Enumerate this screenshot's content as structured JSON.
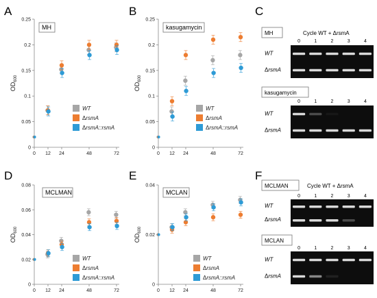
{
  "colors": {
    "wt": "#a6a6a6",
    "rsmA": "#ed7d31",
    "comp": "#2e9bd6",
    "gelBg": "#0d0d0d",
    "band": "#d9d9d9"
  },
  "panels": {
    "A": {
      "letter": "A",
      "label": "MH"
    },
    "B": {
      "letter": "B",
      "label": "kasugamycin"
    },
    "C": {
      "letter": "C",
      "box1": "MH",
      "title": "Cycle WT + ΔrsmA",
      "box2": "kasugamycin"
    },
    "D": {
      "letter": "D",
      "label": "MCLMAN"
    },
    "E": {
      "letter": "E",
      "label": "MCLAN"
    },
    "F": {
      "letter": "F",
      "box1": "MCLMAN",
      "title": "Cycle WT + ΔrsmA",
      "box2": "MCLAN"
    }
  },
  "ylabel_main": "OD",
  "ylabel_sub": "600",
  "legend": [
    "WT",
    "ΔrsmA",
    "ΔrsmA::rsmA"
  ],
  "gel_row_labels": [
    "WT",
    "ΔrsmA"
  ],
  "gel_lanes": [
    "0",
    "1",
    "2",
    "3",
    "4"
  ],
  "chart_data": [
    {
      "panel": "A",
      "type": "scatter",
      "title": "MH",
      "ylabel": "OD600",
      "x": [
        0,
        12,
        24,
        48,
        72
      ],
      "xticks": [
        0,
        12,
        24,
        48,
        72
      ],
      "ylim": [
        0,
        0.25
      ],
      "yticks": [
        "0",
        "0.05",
        "0.1",
        "0.15",
        "0.2",
        "0.25"
      ],
      "ystep": 0.05,
      "series": [
        {
          "name": "WT",
          "values": [
            0.02,
            0.072,
            0.152,
            0.19,
            0.195
          ]
        },
        {
          "name": "ΔrsmA",
          "values": [
            0.02,
            0.072,
            0.16,
            0.2,
            0.2
          ]
        },
        {
          "name": "ΔrsmA::rsmA",
          "values": [
            0.02,
            0.07,
            0.145,
            0.18,
            0.19
          ]
        }
      ]
    },
    {
      "panel": "B",
      "type": "scatter",
      "title": "kasugamycin",
      "ylabel": "OD600",
      "x": [
        0,
        12,
        24,
        48,
        72
      ],
      "xticks": [
        0,
        12,
        24,
        48,
        72
      ],
      "ylim": [
        0,
        0.25
      ],
      "yticks": [
        "0",
        "0.05",
        "0.1",
        "0.15",
        "0.2",
        "0.25"
      ],
      "ystep": 0.05,
      "series": [
        {
          "name": "WT",
          "values": [
            0.02,
            0.07,
            0.13,
            0.17,
            0.18
          ]
        },
        {
          "name": "ΔrsmA",
          "values": [
            0.02,
            0.09,
            0.18,
            0.21,
            0.215
          ]
        },
        {
          "name": "ΔrsmA::rsmA",
          "values": [
            0.02,
            0.06,
            0.11,
            0.145,
            0.155
          ]
        }
      ]
    },
    {
      "panel": "D",
      "type": "scatter",
      "title": "MCLMAN",
      "ylabel": "OD600",
      "x": [
        0,
        12,
        24,
        48,
        72
      ],
      "xticks": [
        0,
        12,
        24,
        48,
        72
      ],
      "ylim": [
        0,
        0.08
      ],
      "yticks": [
        "0",
        "0.02",
        "0.04",
        "0.06",
        "0.08"
      ],
      "ystep": 0.02,
      "series": [
        {
          "name": "WT",
          "values": [
            0.02,
            0.024,
            0.035,
            0.058,
            0.056
          ]
        },
        {
          "name": "ΔrsmA",
          "values": [
            0.02,
            0.025,
            0.032,
            0.05,
            0.051
          ]
        },
        {
          "name": "ΔrsmA::rsmA",
          "values": [
            0.02,
            0.025,
            0.03,
            0.046,
            0.047
          ]
        }
      ]
    },
    {
      "panel": "E",
      "type": "scatter",
      "title": "MCLAN",
      "ylabel": "OD600",
      "x": [
        0,
        12,
        24,
        48,
        72
      ],
      "xticks": [
        0,
        12,
        24,
        48,
        72
      ],
      "ylim": [
        0,
        0.04
      ],
      "yticks": [
        "0",
        "0.02",
        "0.04"
      ],
      "ystep": 0.01,
      "series": [
        {
          "name": "WT",
          "values": [
            0.02,
            0.023,
            0.029,
            0.032,
            0.034
          ]
        },
        {
          "name": "ΔrsmA",
          "values": [
            0.02,
            0.022,
            0.025,
            0.027,
            0.028
          ]
        },
        {
          "name": "ΔrsmA::rsmA",
          "values": [
            0.02,
            0.023,
            0.027,
            0.031,
            0.033
          ]
        }
      ]
    }
  ],
  "gels": {
    "C_top": {
      "rows": [
        [
          1,
          1,
          1,
          1,
          1
        ],
        [
          1,
          1,
          1,
          1,
          1
        ]
      ]
    },
    "C_bottom": {
      "rows": [
        [
          1,
          0.3,
          0.05,
          0,
          0
        ],
        [
          1,
          1,
          1,
          1,
          1
        ]
      ]
    },
    "F_top": {
      "rows": [
        [
          1,
          1,
          1,
          1,
          1
        ],
        [
          1,
          1,
          1,
          0.3,
          0
        ]
      ]
    },
    "F_bottom": {
      "rows": [
        [
          1,
          1,
          1,
          1,
          1
        ],
        [
          1,
          0.6,
          0.1,
          0,
          0
        ]
      ]
    }
  }
}
